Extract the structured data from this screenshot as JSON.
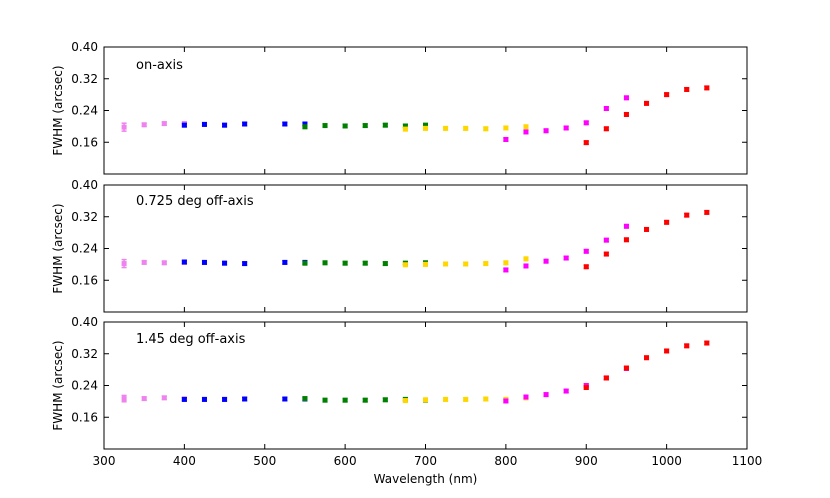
{
  "chart_data": [
    {
      "type": "scatter",
      "annotation": "on-axis",
      "ylabel": "FWHM (arcsec)",
      "xlabel": "",
      "xlim": [
        300,
        1100
      ],
      "ylim": [
        0.08,
        0.4
      ],
      "yticks": [
        "0.16",
        "0.24",
        "0.32",
        "0.40"
      ],
      "xticks": [],
      "series": [
        {
          "color": "#ee82ee",
          "points": [
            [
              325,
              0.198,
              0.01
            ],
            [
              350,
              0.204,
              0.004
            ],
            [
              375,
              0.207,
              0.004
            ],
            [
              400,
              0.207,
              0.004
            ]
          ]
        },
        {
          "color": "#0000ff",
          "points": [
            [
              400,
              0.203,
              0.004
            ],
            [
              425,
              0.205,
              0.004
            ],
            [
              450,
              0.203,
              0.004
            ],
            [
              475,
              0.206,
              0.004
            ],
            [
              525,
              0.206,
              0.004
            ],
            [
              550,
              0.206,
              0.004
            ]
          ]
        },
        {
          "color": "#008000",
          "points": [
            [
              550,
              0.199,
              0.004
            ],
            [
              575,
              0.202,
              0.004
            ],
            [
              600,
              0.201,
              0.004
            ],
            [
              625,
              0.202,
              0.004
            ],
            [
              650,
              0.203,
              0.004
            ],
            [
              675,
              0.201,
              0.004
            ],
            [
              700,
              0.203,
              0.004
            ]
          ]
        },
        {
          "color": "#ffd700",
          "points": [
            [
              675,
              0.193,
              0.004
            ],
            [
              700,
              0.195,
              0.004
            ],
            [
              725,
              0.195,
              0.004
            ],
            [
              750,
              0.195,
              0.004
            ],
            [
              775,
              0.194,
              0.004
            ],
            [
              800,
              0.196,
              0.004
            ],
            [
              825,
              0.199,
              0.004
            ]
          ]
        },
        {
          "color": "#ff00ff",
          "points": [
            [
              800,
              0.167,
              0.004
            ],
            [
              825,
              0.186,
              0.004
            ],
            [
              850,
              0.189,
              0.004
            ],
            [
              875,
              0.196,
              0.004
            ],
            [
              900,
              0.209,
              0.004
            ],
            [
              925,
              0.245,
              0.004
            ],
            [
              950,
              0.272,
              0.004
            ]
          ]
        },
        {
          "color": "#ff0000",
          "points": [
            [
              900,
              0.159,
              0.004
            ],
            [
              925,
              0.194,
              0.004
            ],
            [
              950,
              0.23,
              0.004
            ],
            [
              975,
              0.258,
              0.004
            ],
            [
              1000,
              0.28,
              0.004
            ],
            [
              1025,
              0.293,
              0.004
            ],
            [
              1050,
              0.297,
              0.004
            ]
          ]
        }
      ]
    },
    {
      "type": "scatter",
      "annotation": "0.725 deg off-axis",
      "ylabel": "FWHM (arcsec)",
      "xlabel": "",
      "xlim": [
        300,
        1100
      ],
      "ylim": [
        0.08,
        0.4
      ],
      "yticks": [
        "0.16",
        "0.24",
        "0.32",
        "0.40"
      ],
      "xticks": [],
      "series": [
        {
          "color": "#ee82ee",
          "points": [
            [
              325,
              0.202,
              0.01
            ],
            [
              350,
              0.205,
              0.004
            ],
            [
              375,
              0.204,
              0.004
            ],
            [
              400,
              0.205,
              0.004
            ]
          ]
        },
        {
          "color": "#0000ff",
          "points": [
            [
              400,
              0.206,
              0.004
            ],
            [
              425,
              0.205,
              0.004
            ],
            [
              450,
              0.203,
              0.004
            ],
            [
              475,
              0.202,
              0.004
            ],
            [
              525,
              0.205,
              0.004
            ],
            [
              550,
              0.205,
              0.004
            ]
          ]
        },
        {
          "color": "#008000",
          "points": [
            [
              550,
              0.203,
              0.004
            ],
            [
              575,
              0.204,
              0.004
            ],
            [
              600,
              0.203,
              0.004
            ],
            [
              625,
              0.203,
              0.004
            ],
            [
              650,
              0.202,
              0.004
            ],
            [
              675,
              0.203,
              0.004
            ],
            [
              700,
              0.204,
              0.004
            ]
          ]
        },
        {
          "color": "#ffd700",
          "points": [
            [
              675,
              0.199,
              0.004
            ],
            [
              700,
              0.2,
              0.004
            ],
            [
              725,
              0.201,
              0.004
            ],
            [
              750,
              0.201,
              0.004
            ],
            [
              775,
              0.202,
              0.004
            ],
            [
              800,
              0.204,
              0.004
            ],
            [
              825,
              0.214,
              0.004
            ]
          ]
        },
        {
          "color": "#ff00ff",
          "points": [
            [
              800,
              0.186,
              0.004
            ],
            [
              825,
              0.196,
              0.004
            ],
            [
              850,
              0.208,
              0.004
            ],
            [
              875,
              0.216,
              0.004
            ],
            [
              900,
              0.233,
              0.004
            ],
            [
              925,
              0.261,
              0.004
            ],
            [
              950,
              0.296,
              0.004
            ]
          ]
        },
        {
          "color": "#ff0000",
          "points": [
            [
              900,
              0.194,
              0.004
            ],
            [
              925,
              0.226,
              0.004
            ],
            [
              950,
              0.262,
              0.004
            ],
            [
              975,
              0.288,
              0.004
            ],
            [
              1000,
              0.306,
              0.004
            ],
            [
              1025,
              0.324,
              0.004
            ],
            [
              1050,
              0.331,
              0.004
            ]
          ]
        }
      ]
    },
    {
      "type": "scatter",
      "annotation": "1.45 deg off-axis",
      "ylabel": "FWHM (arcsec)",
      "xlabel": "Wavelength (nm)",
      "xlim": [
        300,
        1100
      ],
      "ylim": [
        0.08,
        0.4
      ],
      "yticks": [
        "0.16",
        "0.24",
        "0.32",
        "0.40"
      ],
      "xticks": [
        "300",
        "400",
        "500",
        "600",
        "700",
        "800",
        "900",
        "1000",
        "1100"
      ],
      "series": [
        {
          "color": "#ee82ee",
          "points": [
            [
              325,
              0.207,
              0.008
            ],
            [
              350,
              0.207,
              0.004
            ],
            [
              375,
              0.209,
              0.004
            ],
            [
              400,
              0.206,
              0.004
            ]
          ]
        },
        {
          "color": "#0000ff",
          "points": [
            [
              400,
              0.205,
              0.004
            ],
            [
              425,
              0.205,
              0.004
            ],
            [
              450,
              0.205,
              0.004
            ],
            [
              475,
              0.206,
              0.004
            ],
            [
              525,
              0.206,
              0.004
            ],
            [
              550,
              0.206,
              0.004
            ]
          ]
        },
        {
          "color": "#008000",
          "points": [
            [
              550,
              0.207,
              0.004
            ],
            [
              575,
              0.203,
              0.004
            ],
            [
              600,
              0.203,
              0.004
            ],
            [
              625,
              0.203,
              0.004
            ],
            [
              650,
              0.204,
              0.004
            ],
            [
              675,
              0.205,
              0.004
            ],
            [
              700,
              0.203,
              0.004
            ]
          ]
        },
        {
          "color": "#ffd700",
          "points": [
            [
              675,
              0.202,
              0.004
            ],
            [
              700,
              0.204,
              0.004
            ],
            [
              725,
              0.205,
              0.004
            ],
            [
              750,
              0.205,
              0.004
            ],
            [
              775,
              0.206,
              0.004
            ],
            [
              800,
              0.205,
              0.004
            ],
            [
              825,
              0.209,
              0.004
            ]
          ]
        },
        {
          "color": "#ff00ff",
          "points": [
            [
              800,
              0.201,
              0.004
            ],
            [
              825,
              0.211,
              0.004
            ],
            [
              850,
              0.217,
              0.004
            ],
            [
              875,
              0.226,
              0.004
            ],
            [
              900,
              0.24,
              0.004
            ],
            [
              925,
              0.259,
              0.004
            ],
            [
              950,
              0.283,
              0.004
            ]
          ]
        },
        {
          "color": "#ff0000",
          "points": [
            [
              900,
              0.235,
              0.004
            ],
            [
              925,
              0.259,
              0.004
            ],
            [
              950,
              0.284,
              0.004
            ],
            [
              975,
              0.31,
              0.004
            ],
            [
              1000,
              0.327,
              0.004
            ],
            [
              1025,
              0.34,
              0.004
            ],
            [
              1050,
              0.347,
              0.004
            ]
          ]
        }
      ]
    }
  ]
}
